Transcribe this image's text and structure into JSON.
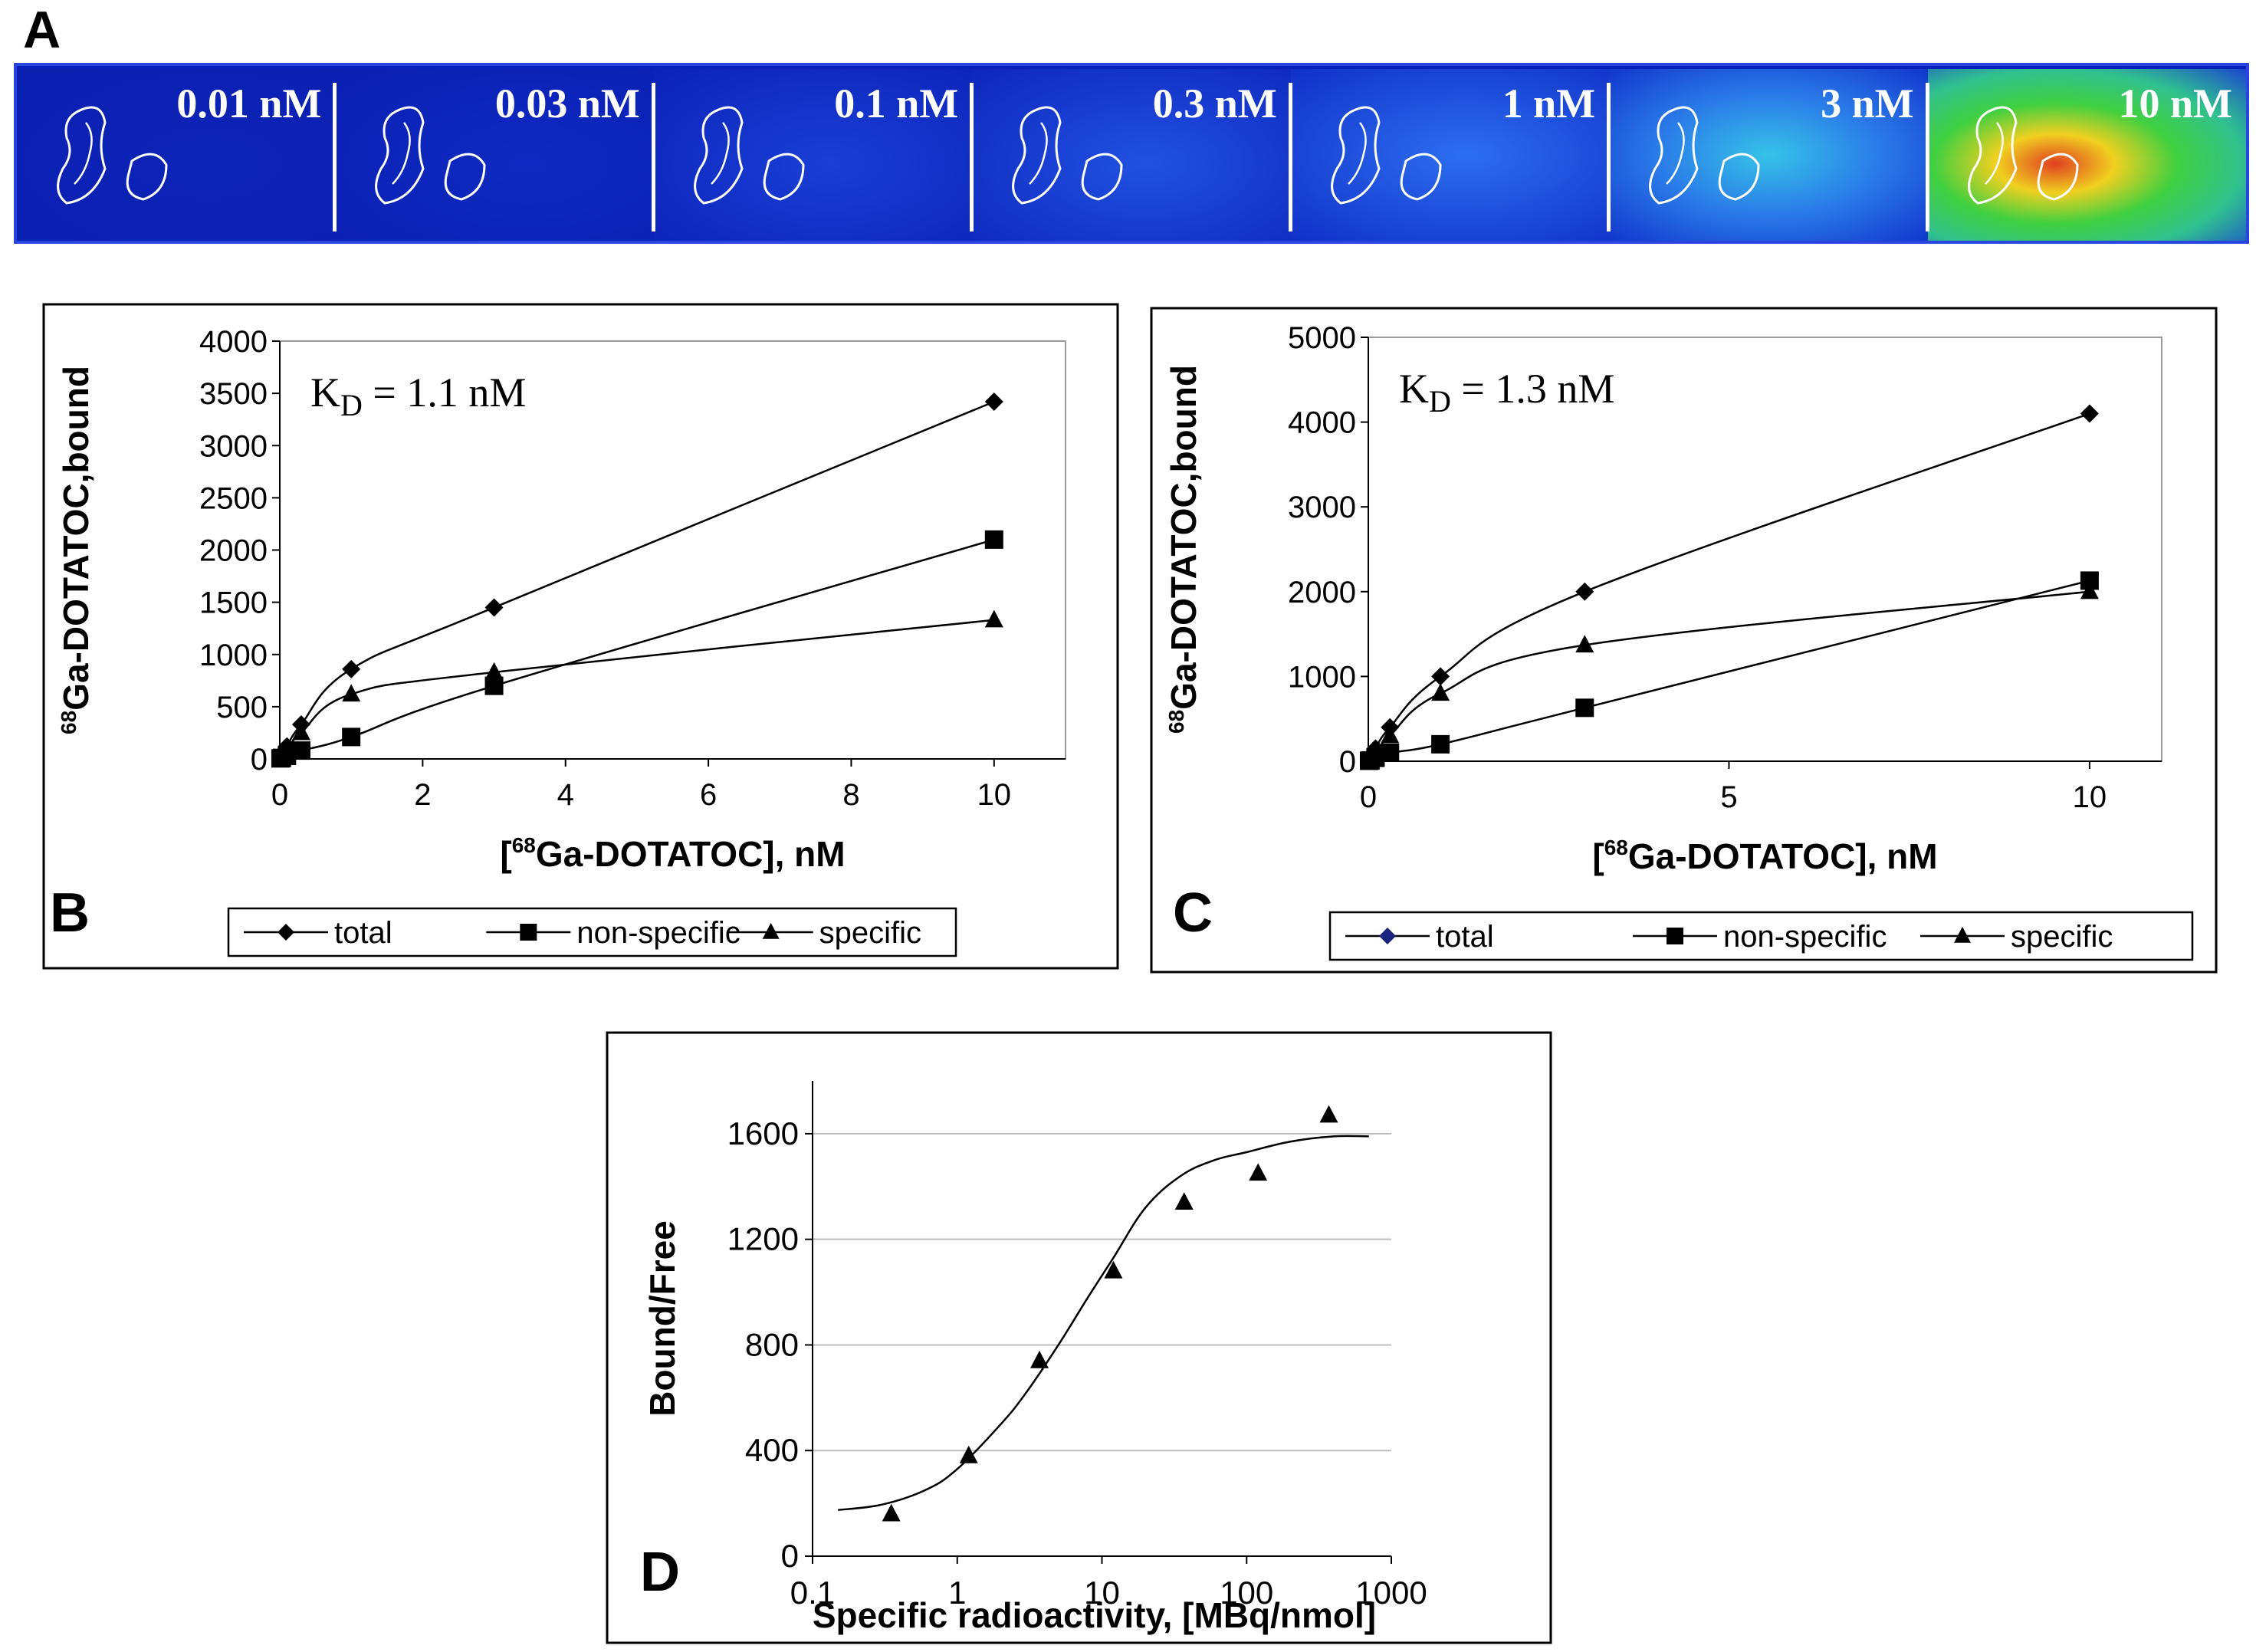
{
  "panels": {
    "a": "A",
    "b": "B",
    "c": "C",
    "d": "D"
  },
  "strip": {
    "labels": [
      "0.01 nM",
      "0.03 nM",
      "0.1 nM",
      "0.3 nM",
      "1 nM",
      "3 nM",
      "10 nM"
    ]
  },
  "chart_data": [
    {
      "id": "B",
      "type": "line",
      "title": "",
      "annotation": "K_D = 1.1 nM",
      "annotation_main": "K",
      "annotation_sub": "D",
      "annotation_rest": " = 1.1 nM",
      "ylabel_sup": "68",
      "ylabel": "Ga-DOTATOC,bound",
      "xlabel_pre": "[",
      "xlabel_sup": "68",
      "xlabel": "Ga-DOTATOC],  nM",
      "xlim": [
        0,
        11
      ],
      "ylim": [
        0,
        4000
      ],
      "xticks": [
        0,
        2,
        4,
        6,
        8,
        10
      ],
      "yticks": [
        0,
        500,
        1000,
        1500,
        2000,
        2500,
        3000,
        3500,
        4000
      ],
      "x": [
        0.01,
        0.03,
        0.1,
        0.3,
        1,
        3,
        10
      ],
      "series": [
        {
          "name": "total",
          "marker": "diamond",
          "values": [
            10,
            30,
            120,
            330,
            860,
            1450,
            3420
          ]
        },
        {
          "name": "non-specific",
          "marker": "square",
          "values": [
            5,
            10,
            30,
            80,
            210,
            700,
            2100
          ]
        },
        {
          "name": "specific",
          "marker": "triangle",
          "values": [
            5,
            20,
            90,
            250,
            620,
            830,
            1330
          ]
        }
      ],
      "legend": [
        "total",
        "non-specific",
        "specific"
      ]
    },
    {
      "id": "C",
      "type": "line",
      "annotation_main": "K",
      "annotation_sub": "D",
      "annotation_rest": " = 1.3 nM",
      "ylabel_sup": "68",
      "ylabel": "Ga-DOTATOC,bound",
      "xlabel_pre": "[",
      "xlabel_sup": "68",
      "xlabel": "Ga-DOTATOC],  nM",
      "xlim": [
        0,
        11
      ],
      "ylim": [
        0,
        5000
      ],
      "xticks": [
        0,
        5,
        10
      ],
      "yticks": [
        0,
        1000,
        2000,
        3000,
        4000,
        5000
      ],
      "x": [
        0.01,
        0.03,
        0.1,
        0.3,
        1,
        3,
        10
      ],
      "series": [
        {
          "name": "total",
          "marker": "diamond",
          "values": [
            10,
            40,
            150,
            400,
            1000,
            2000,
            4100
          ]
        },
        {
          "name": "non-specific",
          "marker": "square",
          "values": [
            5,
            10,
            40,
            100,
            200,
            630,
            2130
          ]
        },
        {
          "name": "specific",
          "marker": "triangle",
          "values": [
            5,
            30,
            110,
            300,
            800,
            1370,
            2000
          ]
        }
      ],
      "legend": [
        "total",
        "non-specific",
        "specific"
      ]
    },
    {
      "id": "D",
      "type": "scatter",
      "ylabel": "Bound/Free",
      "xlabel": "Specific radioactivity,  [MBq/nmol]",
      "xscale": "log",
      "xlim": [
        0.1,
        1000
      ],
      "ylim": [
        0,
        1800
      ],
      "xticks": [
        0.1,
        1,
        10,
        100,
        1000
      ],
      "xtick_labels": [
        "0.1",
        "1",
        "10",
        "100",
        "1000"
      ],
      "yticks": [
        0,
        400,
        800,
        1200,
        1600
      ],
      "points": {
        "x": [
          0.35,
          1.2,
          3.7,
          12,
          37,
          120,
          370
        ],
        "y": [
          160,
          380,
          740,
          1080,
          1340,
          1450,
          1670
        ]
      },
      "fit": {
        "x": [
          0.15,
          0.3,
          0.6,
          1,
          2,
          3,
          5,
          8,
          12,
          20,
          35,
          60,
          100,
          200,
          400,
          700
        ],
        "y": [
          175,
          195,
          250,
          330,
          500,
          620,
          800,
          980,
          1130,
          1320,
          1440,
          1500,
          1530,
          1570,
          1590,
          1590
        ]
      }
    }
  ]
}
